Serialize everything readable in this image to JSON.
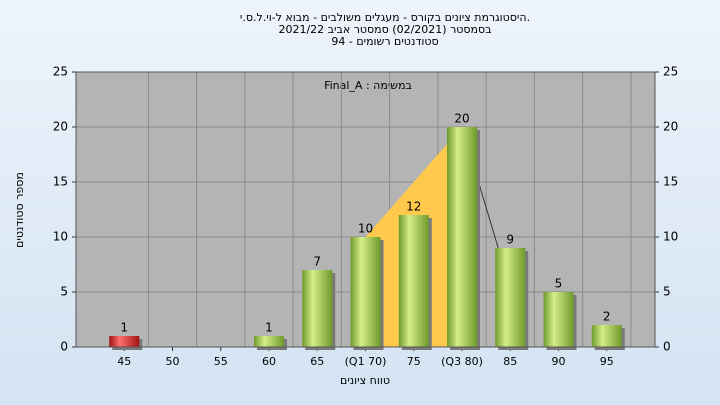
{
  "chart_data": {
    "type": "bar",
    "title": ".היסטוגרמת ציונים בקורס - מעגלים משולבים - מבוא ל-וי.ל.ס.י",
    "subtitle": "בסמסטר  (02/2021)  סמסטר אביב 2021/22",
    "subtitle2": "סטודנטים רשומים - 94",
    "annotation": "במשימה : Final_A",
    "x_label": "טווח ציונים",
    "y_label": "מספר סטודנטים",
    "categories": [
      "45",
      "50",
      "55",
      "60",
      "65",
      "(Q1 70)",
      "75",
      "(Q3 80)",
      "85",
      "90",
      "95"
    ],
    "values": [
      1,
      0,
      0,
      1,
      7,
      10,
      12,
      20,
      9,
      5,
      2
    ],
    "colors": [
      "#e02020",
      "#8cc63f",
      "#8cc63f",
      "#8cc63f",
      "#8cc63f",
      "#8cc63f",
      "#8cc63f",
      "#8cc63f",
      "#8cc63f",
      "#8cc63f",
      "#8cc63f"
    ],
    "ylim": [
      0,
      25
    ],
    "yticks": [
      0,
      5,
      10,
      15,
      20,
      25
    ],
    "grid": true
  }
}
